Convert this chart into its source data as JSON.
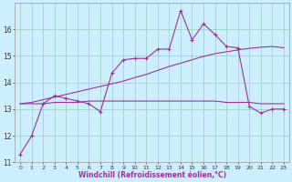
{
  "xlabel": "Windchill (Refroidissement éolien,°C)",
  "x": [
    0,
    1,
    2,
    3,
    4,
    5,
    6,
    7,
    8,
    9,
    10,
    11,
    12,
    13,
    14,
    15,
    16,
    17,
    18,
    19,
    20,
    21,
    22,
    23
  ],
  "line1_y": [
    11.3,
    12.0,
    13.2,
    13.5,
    13.4,
    13.3,
    13.2,
    12.9,
    14.35,
    14.85,
    14.9,
    14.9,
    15.25,
    15.25,
    16.7,
    15.6,
    16.2,
    15.8,
    15.35,
    15.3,
    13.1,
    12.85,
    13.0,
    13.0
  ],
  "line2_y": [
    13.2,
    13.2,
    13.2,
    13.25,
    13.25,
    13.25,
    13.3,
    13.3,
    13.3,
    13.3,
    13.3,
    13.3,
    13.3,
    13.3,
    13.3,
    13.3,
    13.3,
    13.3,
    13.25,
    13.25,
    13.25,
    13.2,
    13.2,
    13.2
  ],
  "line3_y": [
    13.2,
    13.25,
    13.35,
    13.45,
    13.55,
    13.65,
    13.75,
    13.85,
    13.95,
    14.05,
    14.18,
    14.3,
    14.45,
    14.6,
    14.72,
    14.85,
    14.98,
    15.08,
    15.15,
    15.22,
    15.28,
    15.32,
    15.35,
    15.3
  ],
  "line_color": "#993399",
  "background_color": "#cceeff",
  "grid_color": "#99ccbb",
  "ylim": [
    11.0,
    17.0
  ],
  "xlim": [
    -0.5,
    23.5
  ],
  "yticks": [
    11,
    12,
    13,
    14,
    15,
    16
  ],
  "xticks": [
    0,
    1,
    2,
    3,
    4,
    5,
    6,
    7,
    8,
    9,
    10,
    11,
    12,
    13,
    14,
    15,
    16,
    17,
    18,
    19,
    20,
    21,
    22,
    23
  ]
}
